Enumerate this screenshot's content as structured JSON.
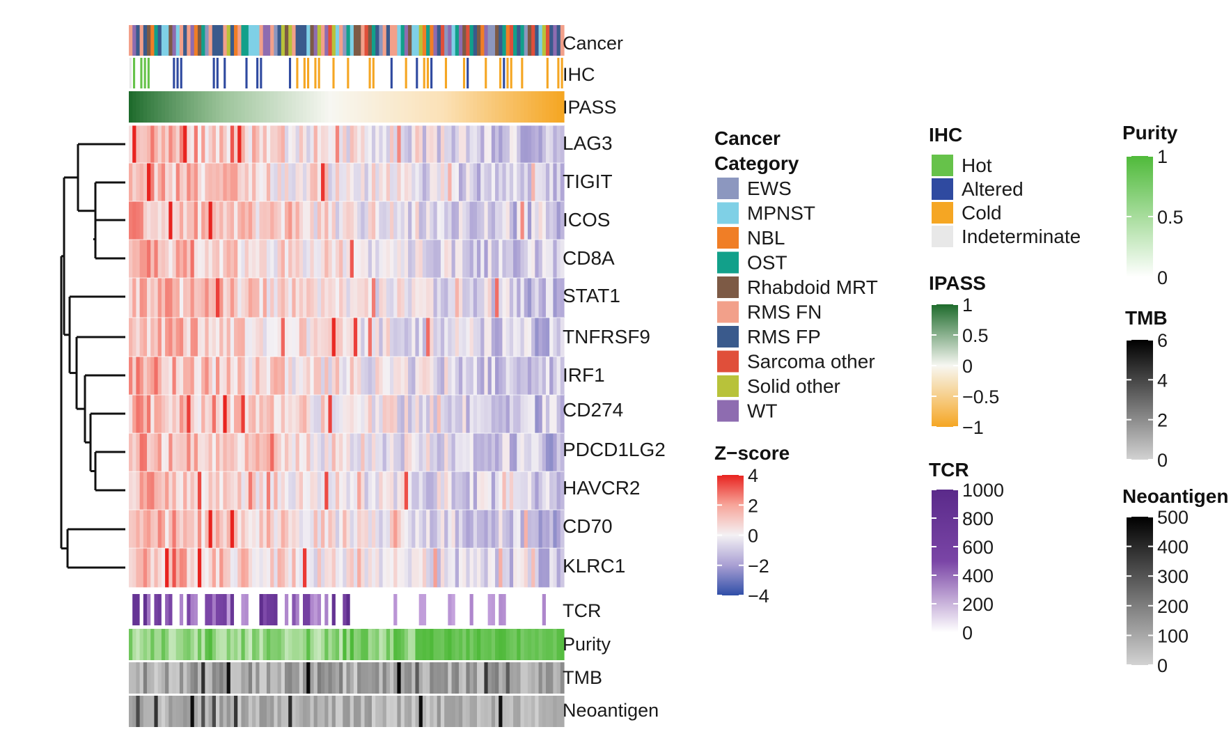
{
  "chart_data": {
    "type": "heatmap",
    "n_samples": 120,
    "annotations_top": [
      "Cancer",
      "IHC",
      "IPASS"
    ],
    "genes": [
      "LAG3",
      "TIGIT",
      "ICOS",
      "CD8A",
      "STAT1",
      "TNFRSF9",
      "IRF1",
      "CD274",
      "PDCD1LG2",
      "HAVCR2",
      "CD70",
      "KLRC1"
    ],
    "annotations_bottom": [
      "TCR",
      "Purity",
      "TMB",
      "Neoantigen"
    ],
    "zscore_range": [
      -4,
      4
    ],
    "ipass_range": [
      1,
      -1
    ],
    "dendrogram_note": "hierarchical clustering of genes",
    "legends": {
      "cancer": {
        "title_line1": "Cancer",
        "title_line2": "Category",
        "items": [
          {
            "label": "EWS",
            "color": "#8c97bf"
          },
          {
            "label": "MPNST",
            "color": "#7fd0e6"
          },
          {
            "label": "NBL",
            "color": "#f07e26"
          },
          {
            "label": "OST",
            "color": "#12a08a"
          },
          {
            "label": "Rhabdoid MRT",
            "color": "#7d5a45"
          },
          {
            "label": "RMS FN",
            "color": "#f2a08a"
          },
          {
            "label": "RMS FP",
            "color": "#3a5a8c"
          },
          {
            "label": "Sarcoma other",
            "color": "#e04f3a"
          },
          {
            "label": "Solid other",
            "color": "#b8c23a"
          },
          {
            "label": "WT",
            "color": "#8e6cb0"
          }
        ]
      },
      "ihc": {
        "title": "IHC",
        "items": [
          {
            "label": "Hot",
            "color": "#66c24a"
          },
          {
            "label": "Altered",
            "color": "#2f4aa0"
          },
          {
            "label": "Cold",
            "color": "#f5a623"
          },
          {
            "label": "Indeterminate",
            "color": "#e8e8e8"
          }
        ]
      },
      "zscore": {
        "title": "Z−score",
        "ticks": [
          "4",
          "2",
          "0",
          "−2",
          "−4"
        ],
        "colors": [
          "#e8231f",
          "#f7a59a",
          "#f4f1f4",
          "#a99fd3",
          "#2f4ea8"
        ]
      },
      "ipass": {
        "title": "IPASS",
        "ticks": [
          "1",
          "0.5",
          "0",
          "−0.5",
          "−1"
        ],
        "colors": [
          "#1e6b2c",
          "#f7f7f2",
          "#f5a623"
        ]
      },
      "tcr": {
        "title": "TCR",
        "ticks": [
          "1000",
          "800",
          "600",
          "400",
          "200",
          "0"
        ],
        "colors": [
          "#5a2a8a",
          "#7a45a6",
          "#ffffff"
        ]
      },
      "purity": {
        "title": "Purity",
        "ticks": [
          "1",
          "0.5",
          "0"
        ],
        "colors": [
          "#4fba3a",
          "#ffffff"
        ]
      },
      "tmb": {
        "title": "TMB",
        "ticks": [
          "6",
          "4",
          "2",
          "0"
        ],
        "colors": [
          "#000000",
          "#d2d2d2"
        ]
      },
      "neoantigen": {
        "title": "Neoantigen",
        "ticks": [
          "500",
          "400",
          "300",
          "200",
          "100",
          "0"
        ],
        "colors": [
          "#000000",
          "#d2d2d2"
        ]
      }
    }
  }
}
